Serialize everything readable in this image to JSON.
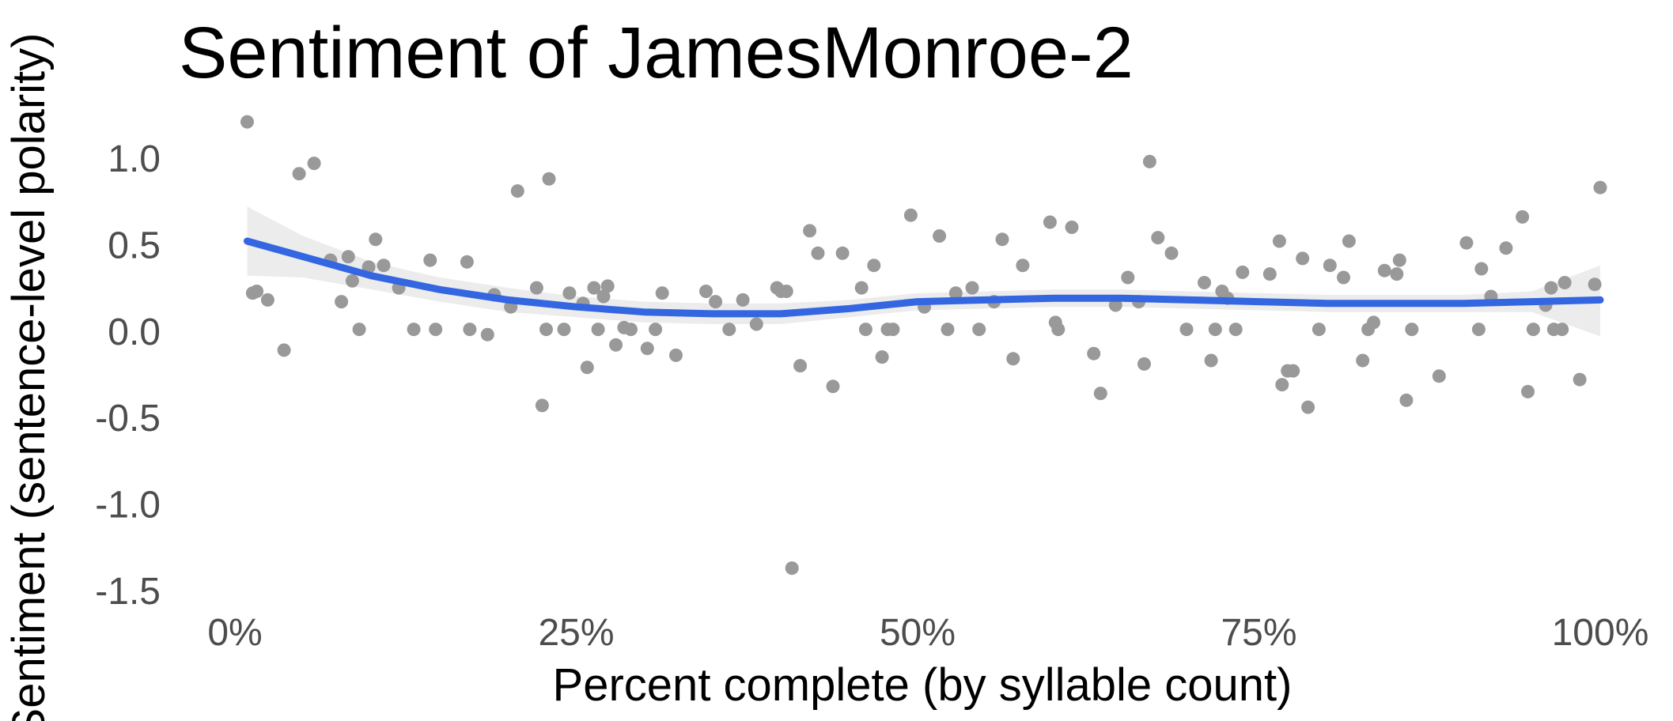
{
  "chart_data": {
    "type": "scatter",
    "title": "Sentiment of JamesMonroe-2",
    "xlabel": "Percent complete (by syllable count)",
    "ylabel": "Sentiment (sentence-level polarity)",
    "xlim": [
      0,
      1
    ],
    "ylim": [
      -1.5,
      1.25
    ],
    "x_ticks": [
      0,
      0.25,
      0.5,
      0.75,
      1.0
    ],
    "x_tick_labels": [
      "0%",
      "25%",
      "50%",
      "75%",
      "100%"
    ],
    "y_ticks": [
      1.0,
      0.5,
      0.0,
      -0.5,
      -1.0,
      -1.5
    ],
    "y_tick_labels": [
      "1.0",
      "0.5",
      "0.0",
      "-0.5",
      "-1.0",
      "-1.5"
    ],
    "grid": false,
    "colors": {
      "points": "#999999",
      "smooth": "#3366e0",
      "band": "#e6e6e6"
    },
    "series": [
      {
        "points": [
          [
            0.009,
            1.21
          ],
          [
            0.013,
            0.22
          ],
          [
            0.016,
            0.23
          ],
          [
            0.024,
            0.18
          ],
          [
            0.036,
            -0.11
          ],
          [
            0.047,
            0.91
          ],
          [
            0.058,
            0.97
          ],
          [
            0.07,
            0.41
          ],
          [
            0.078,
            0.17
          ],
          [
            0.083,
            0.43
          ],
          [
            0.086,
            0.29
          ],
          [
            0.091,
            0.01
          ],
          [
            0.098,
            0.37
          ],
          [
            0.103,
            0.53
          ],
          [
            0.109,
            0.38
          ],
          [
            0.12,
            0.25
          ],
          [
            0.131,
            0.01
          ],
          [
            0.143,
            0.41
          ],
          [
            0.147,
            0.01
          ],
          [
            0.17,
            0.4
          ],
          [
            0.172,
            0.01
          ],
          [
            0.185,
            -0.02
          ],
          [
            0.19,
            0.21
          ],
          [
            0.202,
            0.14
          ],
          [
            0.207,
            0.81
          ],
          [
            0.221,
            0.25
          ],
          [
            0.225,
            -0.43
          ],
          [
            0.228,
            0.01
          ],
          [
            0.23,
            0.88
          ],
          [
            0.241,
            0.01
          ],
          [
            0.245,
            0.22
          ],
          [
            0.255,
            0.16
          ],
          [
            0.258,
            -0.21
          ],
          [
            0.263,
            0.25
          ],
          [
            0.266,
            0.01
          ],
          [
            0.27,
            0.2
          ],
          [
            0.273,
            0.26
          ],
          [
            0.279,
            -0.08
          ],
          [
            0.285,
            0.02
          ],
          [
            0.29,
            0.01
          ],
          [
            0.302,
            -0.1
          ],
          [
            0.308,
            0.01
          ],
          [
            0.313,
            0.22
          ],
          [
            0.323,
            -0.14
          ],
          [
            0.345,
            0.23
          ],
          [
            0.352,
            0.17
          ],
          [
            0.362,
            0.01
          ],
          [
            0.372,
            0.18
          ],
          [
            0.382,
            0.04
          ],
          [
            0.397,
            0.25
          ],
          [
            0.4,
            0.23
          ],
          [
            0.404,
            0.23
          ],
          [
            0.408,
            -1.37
          ],
          [
            0.414,
            -0.2
          ],
          [
            0.421,
            0.58
          ],
          [
            0.427,
            0.45
          ],
          [
            0.438,
            -0.32
          ],
          [
            0.445,
            0.45
          ],
          [
            0.459,
            0.25
          ],
          [
            0.462,
            0.01
          ],
          [
            0.468,
            0.38
          ],
          [
            0.474,
            -0.15
          ],
          [
            0.478,
            0.01
          ],
          [
            0.482,
            0.01
          ],
          [
            0.495,
            0.67
          ],
          [
            0.505,
            0.14
          ],
          [
            0.516,
            0.55
          ],
          [
            0.522,
            0.01
          ],
          [
            0.528,
            0.22
          ],
          [
            0.54,
            0.25
          ],
          [
            0.545,
            0.01
          ],
          [
            0.556,
            0.17
          ],
          [
            0.562,
            0.53
          ],
          [
            0.57,
            -0.16
          ],
          [
            0.577,
            0.38
          ],
          [
            0.597,
            0.63
          ],
          [
            0.601,
            0.05
          ],
          [
            0.603,
            0.01
          ],
          [
            0.613,
            0.6
          ],
          [
            0.629,
            -0.13
          ],
          [
            0.634,
            -0.36
          ],
          [
            0.645,
            0.15
          ],
          [
            0.654,
            0.31
          ],
          [
            0.662,
            0.17
          ],
          [
            0.666,
            -0.19
          ],
          [
            0.67,
            0.98
          ],
          [
            0.676,
            0.54
          ],
          [
            0.686,
            0.45
          ],
          [
            0.697,
            0.01
          ],
          [
            0.71,
            0.28
          ],
          [
            0.715,
            -0.17
          ],
          [
            0.718,
            0.01
          ],
          [
            0.723,
            0.23
          ],
          [
            0.727,
            0.19
          ],
          [
            0.733,
            0.01
          ],
          [
            0.738,
            0.34
          ],
          [
            0.758,
            0.33
          ],
          [
            0.765,
            0.52
          ],
          [
            0.767,
            -0.31
          ],
          [
            0.771,
            -0.23
          ],
          [
            0.775,
            -0.23
          ],
          [
            0.782,
            0.42
          ],
          [
            0.786,
            -0.44
          ],
          [
            0.794,
            0.01
          ],
          [
            0.802,
            0.38
          ],
          [
            0.812,
            0.31
          ],
          [
            0.816,
            0.52
          ],
          [
            0.826,
            -0.17
          ],
          [
            0.83,
            0.01
          ],
          [
            0.834,
            0.05
          ],
          [
            0.842,
            0.35
          ],
          [
            0.851,
            0.33
          ],
          [
            0.853,
            0.41
          ],
          [
            0.858,
            -0.4
          ],
          [
            0.862,
            0.01
          ],
          [
            0.882,
            -0.26
          ],
          [
            0.902,
            0.51
          ],
          [
            0.911,
            0.01
          ],
          [
            0.913,
            0.36
          ],
          [
            0.92,
            0.2
          ],
          [
            0.931,
            0.48
          ],
          [
            0.943,
            0.66
          ],
          [
            0.947,
            -0.35
          ],
          [
            0.951,
            0.01
          ],
          [
            0.96,
            0.15
          ],
          [
            0.964,
            0.25
          ],
          [
            0.966,
            0.01
          ],
          [
            0.972,
            0.01
          ],
          [
            0.974,
            0.28
          ],
          [
            0.985,
            -0.28
          ],
          [
            0.996,
            0.27
          ],
          [
            1.0,
            0.83
          ]
        ]
      },
      {
        "smooth": [
          [
            0.009,
            0.52
          ],
          [
            0.05,
            0.43
          ],
          [
            0.1,
            0.32
          ],
          [
            0.15,
            0.24
          ],
          [
            0.2,
            0.18
          ],
          [
            0.25,
            0.14
          ],
          [
            0.3,
            0.11
          ],
          [
            0.35,
            0.1
          ],
          [
            0.4,
            0.1
          ],
          [
            0.45,
            0.13
          ],
          [
            0.5,
            0.17
          ],
          [
            0.55,
            0.18
          ],
          [
            0.6,
            0.19
          ],
          [
            0.65,
            0.19
          ],
          [
            0.7,
            0.18
          ],
          [
            0.75,
            0.17
          ],
          [
            0.8,
            0.16
          ],
          [
            0.85,
            0.16
          ],
          [
            0.9,
            0.16
          ],
          [
            0.95,
            0.17
          ],
          [
            1.0,
            0.18
          ]
        ],
        "band_upper": [
          [
            0.009,
            0.72
          ],
          [
            0.05,
            0.55
          ],
          [
            0.1,
            0.4
          ],
          [
            0.15,
            0.31
          ],
          [
            0.2,
            0.25
          ],
          [
            0.25,
            0.2
          ],
          [
            0.3,
            0.17
          ],
          [
            0.35,
            0.16
          ],
          [
            0.4,
            0.16
          ],
          [
            0.45,
            0.18
          ],
          [
            0.5,
            0.22
          ],
          [
            0.55,
            0.23
          ],
          [
            0.6,
            0.24
          ],
          [
            0.65,
            0.24
          ],
          [
            0.7,
            0.23
          ],
          [
            0.75,
            0.22
          ],
          [
            0.8,
            0.21
          ],
          [
            0.85,
            0.21
          ],
          [
            0.9,
            0.21
          ],
          [
            0.95,
            0.23
          ],
          [
            1.0,
            0.38
          ]
        ],
        "band_lower": [
          [
            0.009,
            0.32
          ],
          [
            0.05,
            0.31
          ],
          [
            0.1,
            0.24
          ],
          [
            0.15,
            0.17
          ],
          [
            0.2,
            0.11
          ],
          [
            0.25,
            0.08
          ],
          [
            0.3,
            0.05
          ],
          [
            0.35,
            0.04
          ],
          [
            0.4,
            0.04
          ],
          [
            0.45,
            0.08
          ],
          [
            0.5,
            0.12
          ],
          [
            0.55,
            0.13
          ],
          [
            0.6,
            0.14
          ],
          [
            0.65,
            0.14
          ],
          [
            0.7,
            0.13
          ],
          [
            0.75,
            0.12
          ],
          [
            0.8,
            0.11
          ],
          [
            0.85,
            0.11
          ],
          [
            0.9,
            0.11
          ],
          [
            0.95,
            0.11
          ],
          [
            1.0,
            -0.03
          ]
        ]
      }
    ]
  }
}
